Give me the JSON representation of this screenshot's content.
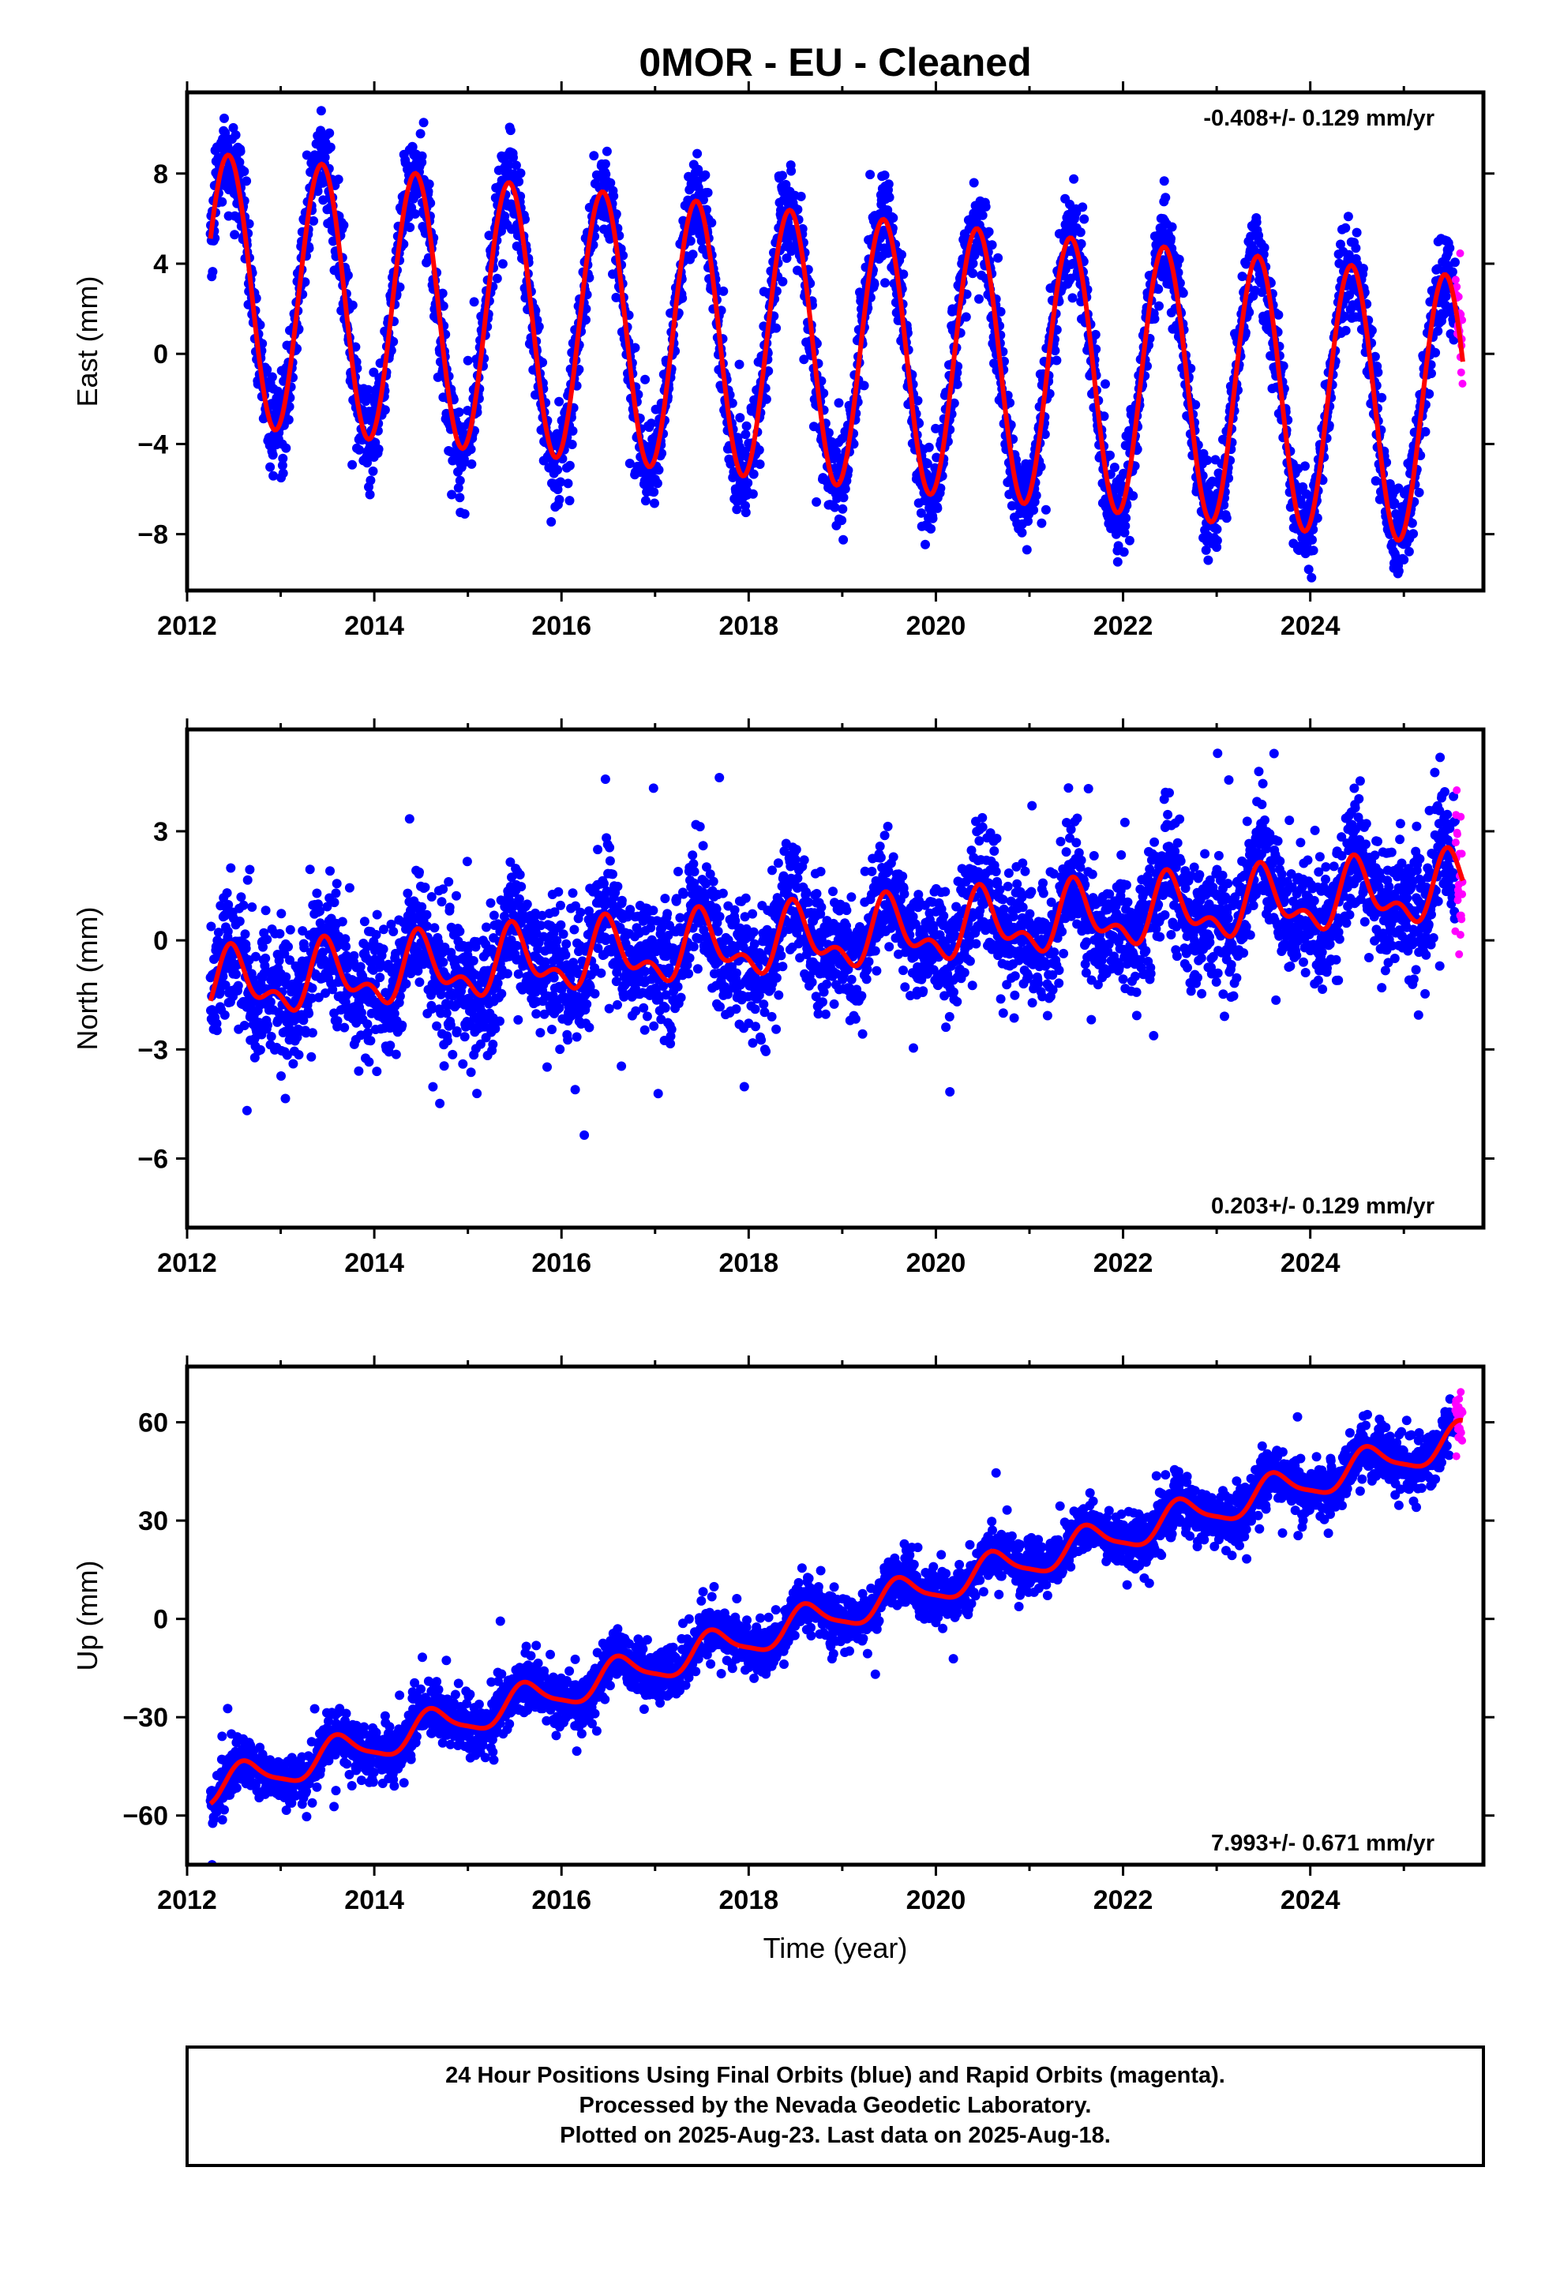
{
  "title": "0MOR  - EU - Cleaned",
  "colors": {
    "final_orbits": "#0000ff",
    "rapid_orbits": "#ff00ff",
    "model_fit": "#ff0000",
    "frame": "#000000"
  },
  "chart_data": [
    {
      "type": "scatter",
      "name": "east",
      "ylabel": "East (mm)",
      "xlabel": "",
      "xlim": [
        2012.0,
        2025.85
      ],
      "ylim": [
        -10.5,
        11.6
      ],
      "xticks": [
        2012,
        2014,
        2016,
        2018,
        2020,
        2022,
        2024
      ],
      "xtick_labels": [
        "2012",
        "2014",
        "2016",
        "2018",
        "2020",
        "2022",
        "2024"
      ],
      "yticks": [
        -8,
        -4,
        0,
        4,
        8
      ],
      "ytick_labels": [
        "−8",
        "−4",
        "0",
        "4",
        "8"
      ],
      "rate_text": "-0.408+/- 0.129 mm/yr",
      "rate_position": "top-right",
      "data_span": [
        2012.25,
        2025.55
      ],
      "rapid_span": [
        2025.55,
        2025.63
      ],
      "model": {
        "offset_at_2012_25": 2.9,
        "rate_mm_per_yr": -0.408,
        "annual_amplitude": 6.0,
        "annual_peak_fraction": 0.44,
        "semiannual_amplitude": 0.0,
        "semiannual_peak_fraction": 0.0
      },
      "scatter_sd": 1.0,
      "points_per_year": 300
    },
    {
      "type": "scatter",
      "name": "north",
      "ylabel": "North (mm)",
      "xlabel": "",
      "xlim": [
        2012.0,
        2025.85
      ],
      "ylim": [
        -7.9,
        5.8
      ],
      "xticks": [
        2012,
        2014,
        2016,
        2018,
        2020,
        2022,
        2024
      ],
      "xtick_labels": [
        "2012",
        "2014",
        "2016",
        "2018",
        "2020",
        "2022",
        "2024"
      ],
      "yticks": [
        -6,
        -3,
        0,
        3
      ],
      "ytick_labels": [
        "−6",
        "−3",
        "0",
        "3"
      ],
      "rate_text": "0.203+/- 0.129 mm/yr",
      "rate_position": "bottom-right",
      "data_span": [
        2012.25,
        2025.55
      ],
      "rapid_span": [
        2025.55,
        2025.63
      ],
      "model": {
        "offset_at_2012_25": -1.3,
        "rate_mm_per_yr": 0.203,
        "annual_amplitude": 0.75,
        "annual_peak_fraction": 0.5,
        "semiannual_amplitude": 0.45,
        "semiannual_peak_fraction": 0.45
      },
      "scatter_sd": 0.85,
      "points_per_year": 300
    },
    {
      "type": "scatter",
      "name": "up",
      "ylabel": "Up (mm)",
      "xlabel": "Time (year)",
      "xlim": [
        2012.0,
        2025.85
      ],
      "ylim": [
        -75,
        77
      ],
      "xticks": [
        2012,
        2014,
        2016,
        2018,
        2020,
        2022,
        2024
      ],
      "xtick_labels": [
        "2012",
        "2014",
        "2016",
        "2018",
        "2020",
        "2022",
        "2024"
      ],
      "yticks": [
        -60,
        -30,
        0,
        30,
        60
      ],
      "ytick_labels": [
        "−60",
        "−30",
        "0",
        "30",
        "60"
      ],
      "rate_text": "7.993+/- 0.671 mm/yr",
      "rate_position": "bottom-right",
      "data_span": [
        2012.25,
        2025.55
      ],
      "rapid_span": [
        2025.55,
        2025.63
      ],
      "model": {
        "offset_at_2012_25": -52.0,
        "rate_mm_per_yr": 7.993,
        "annual_amplitude": 5.0,
        "annual_peak_fraction": 0.62,
        "semiannual_amplitude": 1.2,
        "semiannual_peak_fraction": 0.55
      },
      "scatter_sd": 4.0,
      "points_per_year": 300
    }
  ],
  "footer": {
    "line1": "24 Hour Positions Using Final Orbits (blue) and Rapid Orbits (magenta).",
    "line2": "Processed by the Nevada Geodetic Laboratory.",
    "line3": "Plotted on 2025-Aug-23. Last data on 2025-Aug-18."
  }
}
